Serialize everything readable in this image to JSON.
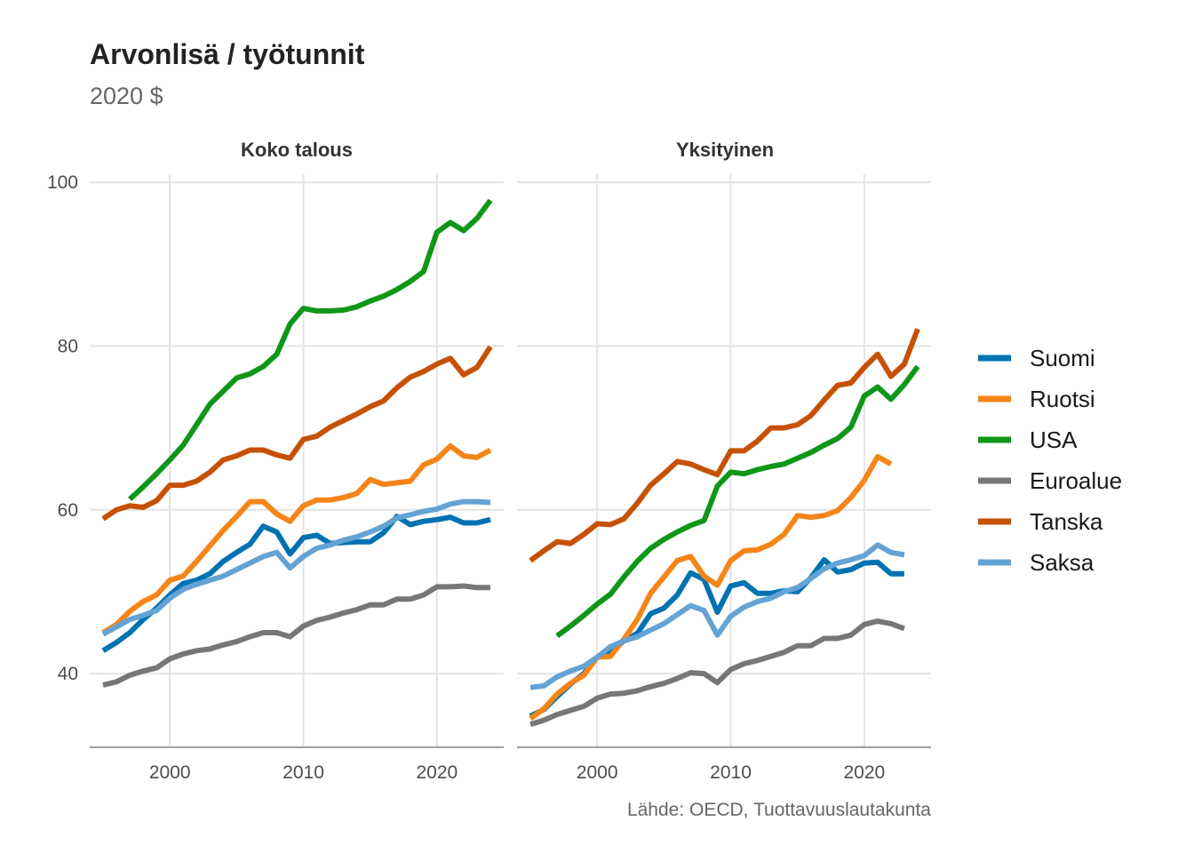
{
  "chart_data": {
    "type": "line",
    "title": "Arvonlisä / työtunnit",
    "subtitle": "2020 $",
    "caption": "Lähde: OECD, Tuottavuuslautakunta",
    "xlabel": "",
    "ylabel": "",
    "x_ticks": [
      2000,
      2010,
      2020
    ],
    "y_ticks": [
      40,
      60,
      80,
      100
    ],
    "xlim": [
      1994,
      2025
    ],
    "ylim": [
      31,
      101
    ],
    "grid": true,
    "legend_position": "right",
    "facets": [
      {
        "title": "Koko talous",
        "series": [
          {
            "name": "Suomi",
            "color": "#0072b2",
            "x": [
              1995,
              1996,
              1997,
              1998,
              1999,
              2000,
              2001,
              2002,
              2003,
              2004,
              2005,
              2006,
              2007,
              2008,
              2009,
              2010,
              2011,
              2012,
              2013,
              2014,
              2015,
              2016,
              2017,
              2018,
              2019,
              2020,
              2021,
              2022,
              2023,
              2024
            ],
            "y": [
              42.8,
              43.8,
              45.0,
              46.6,
              48.0,
              49.6,
              51.0,
              51.4,
              52.2,
              53.7,
              54.8,
              55.8,
              58.0,
              57.3,
              54.6,
              56.6,
              56.9,
              55.9,
              56.0,
              56.1,
              56.1,
              57.2,
              59.2,
              58.2,
              58.6,
              58.8,
              59.1,
              58.4,
              58.4,
              58.8
            ]
          },
          {
            "name": "Ruotsi",
            "color": "#f58518",
            "x": [
              1995,
              1996,
              1997,
              1998,
              1999,
              2000,
              2001,
              2002,
              2003,
              2004,
              2005,
              2006,
              2007,
              2008,
              2009,
              2010,
              2011,
              2012,
              2013,
              2014,
              2015,
              2016,
              2017,
              2018,
              2019,
              2020,
              2021,
              2022,
              2023,
              2024
            ],
            "y": [
              45.0,
              46.0,
              47.6,
              48.8,
              49.6,
              51.4,
              51.9,
              53.7,
              55.6,
              57.5,
              59.2,
              61.0,
              61.0,
              59.5,
              58.6,
              60.5,
              61.2,
              61.2,
              61.5,
              62.0,
              63.7,
              63.1,
              63.3,
              63.5,
              65.5,
              66.2,
              67.8,
              66.6,
              66.4,
              67.3
            ]
          },
          {
            "name": "USA",
            "color": "#109618",
            "x": [
              1997,
              1998,
              1999,
              2000,
              2001,
              2002,
              2003,
              2004,
              2005,
              2006,
              2007,
              2008,
              2009,
              2010,
              2011,
              2012,
              2013,
              2014,
              2015,
              2016,
              2017,
              2018,
              2019,
              2020,
              2021,
              2022,
              2023,
              2024
            ],
            "y": [
              61.3,
              62.8,
              64.4,
              66.1,
              67.9,
              70.4,
              72.9,
              74.5,
              76.1,
              76.6,
              77.5,
              79.0,
              82.7,
              84.6,
              84.3,
              84.3,
              84.4,
              84.8,
              85.5,
              86.1,
              86.9,
              87.9,
              89.1,
              93.9,
              95.1,
              94.1,
              95.6,
              97.8
            ]
          },
          {
            "name": "Euroalue",
            "color": "#777777",
            "x": [
              1995,
              1996,
              1997,
              1998,
              1999,
              2000,
              2001,
              2002,
              2003,
              2004,
              2005,
              2006,
              2007,
              2008,
              2009,
              2010,
              2011,
              2012,
              2013,
              2014,
              2015,
              2016,
              2017,
              2018,
              2019,
              2020,
              2021,
              2022,
              2023,
              2024
            ],
            "y": [
              38.6,
              39.0,
              39.8,
              40.3,
              40.7,
              41.8,
              42.4,
              42.8,
              43.0,
              43.5,
              43.9,
              44.5,
              45.0,
              45.0,
              44.5,
              45.8,
              46.5,
              46.9,
              47.4,
              47.8,
              48.4,
              48.4,
              49.1,
              49.1,
              49.6,
              50.6,
              50.6,
              50.7,
              50.5,
              50.5
            ]
          },
          {
            "name": "Tanska",
            "color": "#c65106",
            "x": [
              1995,
              1996,
              1997,
              1998,
              1999,
              2000,
              2001,
              2002,
              2003,
              2004,
              2005,
              2006,
              2007,
              2008,
              2009,
              2010,
              2011,
              2012,
              2013,
              2014,
              2015,
              2016,
              2017,
              2018,
              2019,
              2020,
              2021,
              2022,
              2023,
              2024
            ],
            "y": [
              58.9,
              60.0,
              60.5,
              60.3,
              61.1,
              63.0,
              63.0,
              63.5,
              64.6,
              66.1,
              66.6,
              67.3,
              67.3,
              66.7,
              66.3,
              68.6,
              69.0,
              70.1,
              70.9,
              71.7,
              72.6,
              73.3,
              74.9,
              76.2,
              76.9,
              77.8,
              78.5,
              76.5,
              77.4,
              79.9
            ]
          },
          {
            "name": "Saksa",
            "color": "#65a3d4",
            "x": [
              1995,
              1996,
              1997,
              1998,
              1999,
              2000,
              2001,
              2002,
              2003,
              2004,
              2005,
              2006,
              2007,
              2008,
              2009,
              2010,
              2011,
              2012,
              2013,
              2014,
              2015,
              2016,
              2017,
              2018,
              2019,
              2020,
              2021,
              2022,
              2023,
              2024
            ],
            "y": [
              44.8,
              45.7,
              46.6,
              47.1,
              47.7,
              49.2,
              50.3,
              50.9,
              51.4,
              51.9,
              52.7,
              53.5,
              54.3,
              54.8,
              52.9,
              54.3,
              55.3,
              55.7,
              56.3,
              56.7,
              57.3,
              58.0,
              59.0,
              59.4,
              59.8,
              60.1,
              60.7,
              61.0,
              61.0,
              60.9
            ]
          }
        ]
      },
      {
        "title": "Yksityinen",
        "series": [
          {
            "name": "Suomi",
            "color": "#0072b2",
            "x": [
              1995,
              1996,
              1997,
              1998,
              1999,
              2000,
              2001,
              2002,
              2003,
              2004,
              2005,
              2006,
              2007,
              2008,
              2009,
              2010,
              2011,
              2012,
              2013,
              2014,
              2015,
              2016,
              2017,
              2018,
              2019,
              2020,
              2021,
              2022,
              2023
            ],
            "y": [
              34.8,
              35.6,
              37.2,
              38.7,
              40.0,
              42.0,
              42.5,
              44.0,
              44.9,
              47.3,
              48.0,
              49.6,
              52.3,
              51.5,
              47.5,
              50.7,
              51.1,
              49.8,
              49.8,
              50.1,
              50.0,
              51.7,
              53.9,
              52.4,
              52.7,
              53.5,
              53.6,
              52.2,
              52.2
            ]
          },
          {
            "name": "Ruotsi",
            "color": "#f58518",
            "x": [
              1995,
              1996,
              1997,
              1998,
              1999,
              2000,
              2001,
              2002,
              2003,
              2004,
              2005,
              2006,
              2007,
              2008,
              2009,
              2010,
              2011,
              2012,
              2013,
              2014,
              2015,
              2016,
              2017,
              2018,
              2019,
              2020,
              2021,
              2022
            ],
            "y": [
              34.5,
              35.7,
              37.5,
              38.8,
              39.8,
              42.0,
              42.1,
              44.2,
              46.6,
              49.8,
              51.8,
              53.8,
              54.3,
              51.9,
              50.8,
              53.8,
              55.0,
              55.1,
              55.8,
              57.0,
              59.3,
              59.1,
              59.3,
              59.9,
              61.5,
              63.6,
              66.5,
              65.6
            ]
          },
          {
            "name": "USA",
            "color": "#109618",
            "x": [
              1997,
              1998,
              1999,
              2000,
              2001,
              2002,
              2003,
              2004,
              2005,
              2006,
              2007,
              2008,
              2009,
              2010,
              2011,
              2012,
              2013,
              2014,
              2015,
              2016,
              2017,
              2018,
              2019,
              2020,
              2021,
              2022,
              2023,
              2024
            ],
            "y": [
              44.6,
              45.8,
              47.1,
              48.5,
              49.7,
              51.8,
              53.7,
              55.3,
              56.4,
              57.3,
              58.1,
              58.7,
              62.9,
              64.6,
              64.4,
              64.9,
              65.3,
              65.6,
              66.3,
              67.0,
              67.9,
              68.7,
              70.1,
              73.9,
              75.0,
              73.5,
              75.3,
              77.5
            ]
          },
          {
            "name": "Euroalue",
            "color": "#777777",
            "x": [
              1995,
              1996,
              1997,
              1998,
              1999,
              2000,
              2001,
              2002,
              2003,
              2004,
              2005,
              2006,
              2007,
              2008,
              2009,
              2010,
              2011,
              2012,
              2013,
              2014,
              2015,
              2016,
              2017,
              2018,
              2019,
              2020,
              2021,
              2022,
              2023
            ],
            "y": [
              33.8,
              34.3,
              35.0,
              35.5,
              36.0,
              37.0,
              37.5,
              37.6,
              37.9,
              38.4,
              38.8,
              39.4,
              40.1,
              40.0,
              38.9,
              40.5,
              41.2,
              41.6,
              42.1,
              42.6,
              43.4,
              43.4,
              44.3,
              44.3,
              44.7,
              46.0,
              46.4,
              46.1,
              45.5
            ]
          },
          {
            "name": "Tanska",
            "color": "#c65106",
            "x": [
              1995,
              1996,
              1997,
              1998,
              1999,
              2000,
              2001,
              2002,
              2003,
              2004,
              2005,
              2006,
              2007,
              2008,
              2009,
              2010,
              2011,
              2012,
              2013,
              2014,
              2015,
              2016,
              2017,
              2018,
              2019,
              2020,
              2021,
              2022,
              2023,
              2024
            ],
            "y": [
              53.8,
              55.0,
              56.1,
              55.9,
              57.0,
              58.3,
              58.2,
              58.9,
              60.8,
              63.0,
              64.4,
              65.9,
              65.6,
              64.9,
              64.3,
              67.2,
              67.2,
              68.4,
              70.0,
              70.0,
              70.4,
              71.5,
              73.4,
              75.2,
              75.5,
              77.4,
              79.0,
              76.3,
              77.8,
              82.1
            ]
          },
          {
            "name": "Saksa",
            "color": "#65a3d4",
            "x": [
              1995,
              1996,
              1997,
              1998,
              1999,
              2000,
              2001,
              2002,
              2003,
              2004,
              2005,
              2006,
              2007,
              2008,
              2009,
              2010,
              2011,
              2012,
              2013,
              2014,
              2015,
              2016,
              2017,
              2018,
              2019,
              2020,
              2021,
              2022,
              2023
            ],
            "y": [
              38.3,
              38.5,
              39.6,
              40.3,
              40.9,
              42.0,
              43.3,
              44.0,
              44.5,
              45.3,
              46.1,
              47.2,
              48.3,
              47.7,
              44.7,
              47.0,
              48.1,
              48.8,
              49.2,
              50.0,
              50.5,
              51.6,
              52.8,
              53.5,
              53.9,
              54.4,
              55.7,
              54.8,
              54.5
            ]
          }
        ]
      }
    ]
  }
}
